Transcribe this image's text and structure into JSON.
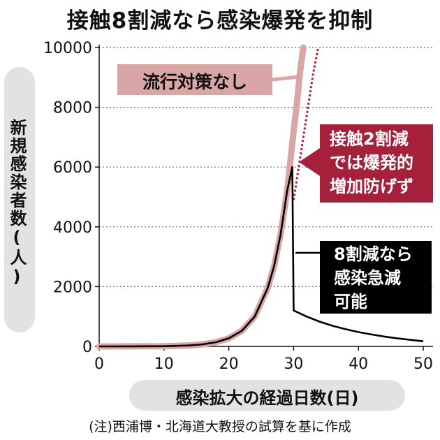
{
  "title": "接触8割減なら感染爆発を抑制",
  "note": "(注)西浦博・北海道大教授の試算を基に作成",
  "colors": {
    "no_measures": "#d9a5a5",
    "reduce20": "#a5203a",
    "reduce80": "#000000",
    "label_pill": "#e2e2e2"
  },
  "chart_data": {
    "type": "line",
    "ylabel": "新規感染者数(人)",
    "xlabel": "感染拡大の経過日数(日)",
    "xlim": [
      0,
      50
    ],
    "ylim": [
      0,
      10000
    ],
    "xticks": [
      "0",
      "10",
      "20",
      "30",
      "40",
      "50"
    ],
    "yticks": [
      "0",
      "2000",
      "4000",
      "6000",
      "8000",
      "10000"
    ],
    "grid": "horizontal dotted",
    "annotations": {
      "no_measures": "流行対策なし",
      "reduce20_lines": [
        "接触2割減",
        "では爆発的",
        "増加防げず"
      ],
      "reduce80_lines": [
        "8割減なら",
        "感染急減",
        "可能"
      ]
    },
    "series": [
      {
        "key": "no_measures",
        "style": "thick pink",
        "x": [
          0,
          5,
          10,
          12,
          14,
          16,
          18,
          20,
          22,
          24,
          26,
          27,
          28,
          29,
          30,
          30.5,
          31,
          31.5
        ],
        "y": [
          0,
          2,
          8,
          18,
          35,
          70,
          140,
          270,
          520,
          1000,
          1950,
          2700,
          3750,
          5200,
          7200,
          8100,
          9200,
          10000
        ]
      },
      {
        "key": "reduce20",
        "style": "dotted red",
        "x": [
          30,
          31,
          32,
          33,
          33.8
        ],
        "y": [
          4900,
          6300,
          7700,
          9100,
          10000
        ]
      },
      {
        "key": "reduce80",
        "style": "solid black",
        "x": [
          0,
          5,
          10,
          12,
          14,
          16,
          18,
          20,
          22,
          24,
          26,
          27,
          28,
          29,
          29.8,
          30,
          30.01,
          32,
          34,
          36,
          38,
          40,
          42,
          44,
          46,
          48,
          50
        ],
        "y": [
          0,
          2,
          8,
          18,
          35,
          70,
          140,
          270,
          520,
          1000,
          1950,
          2700,
          3750,
          5200,
          6000,
          1300,
          1200,
          1000,
          830,
          690,
          580,
          480,
          400,
          330,
          270,
          220,
          170
        ]
      }
    ]
  }
}
